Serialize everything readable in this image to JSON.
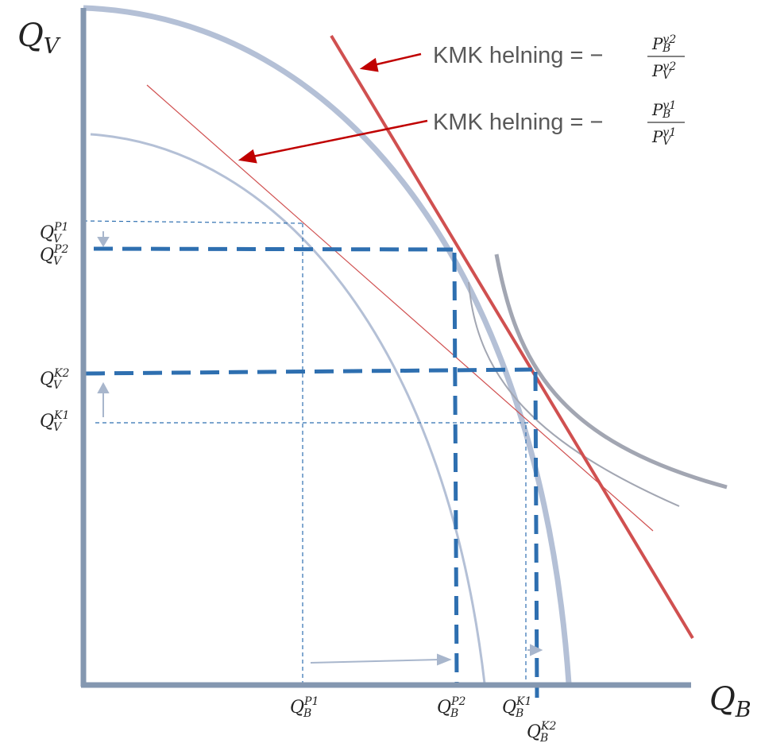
{
  "axes": {
    "y_label": "Q",
    "y_label_sub": "V",
    "x_label": "Q",
    "x_label_sub": "B"
  },
  "annotations": [
    {
      "prefix": "KMK helning = −",
      "num_base": "P",
      "num_sub": "B",
      "num_sup": "v2",
      "den_base": "P",
      "den_sub": "V",
      "den_sup": "v2"
    },
    {
      "prefix": "KMK helning = −",
      "num_base": "P",
      "num_sub": "B",
      "num_sup": "v1",
      "den_base": "P",
      "den_sub": "V",
      "den_sup": "v1"
    }
  ],
  "y_ticks": [
    {
      "base": "Q",
      "sub": "V",
      "sup": "P1"
    },
    {
      "base": "Q",
      "sub": "V",
      "sup": "P2"
    },
    {
      "base": "Q",
      "sub": "V",
      "sup": "K2"
    },
    {
      "base": "Q",
      "sub": "V",
      "sup": "K1"
    }
  ],
  "x_ticks": [
    {
      "base": "Q",
      "sub": "B",
      "sup": "P1"
    },
    {
      "base": "Q",
      "sub": "B",
      "sup": "P2"
    },
    {
      "base": "Q",
      "sub": "B",
      "sup": "K1"
    },
    {
      "base": "Q",
      "sub": "B",
      "sup": "K2"
    }
  ],
  "colors": {
    "axis": "#8497b0",
    "ppf": "#b4c0d6",
    "indifference": "#a2a6b2",
    "price_line": "#d05050",
    "arrow_red": "#c00000",
    "guide_blue": "#2e6fb0",
    "shift_arrow": "#a8b6cc"
  }
}
